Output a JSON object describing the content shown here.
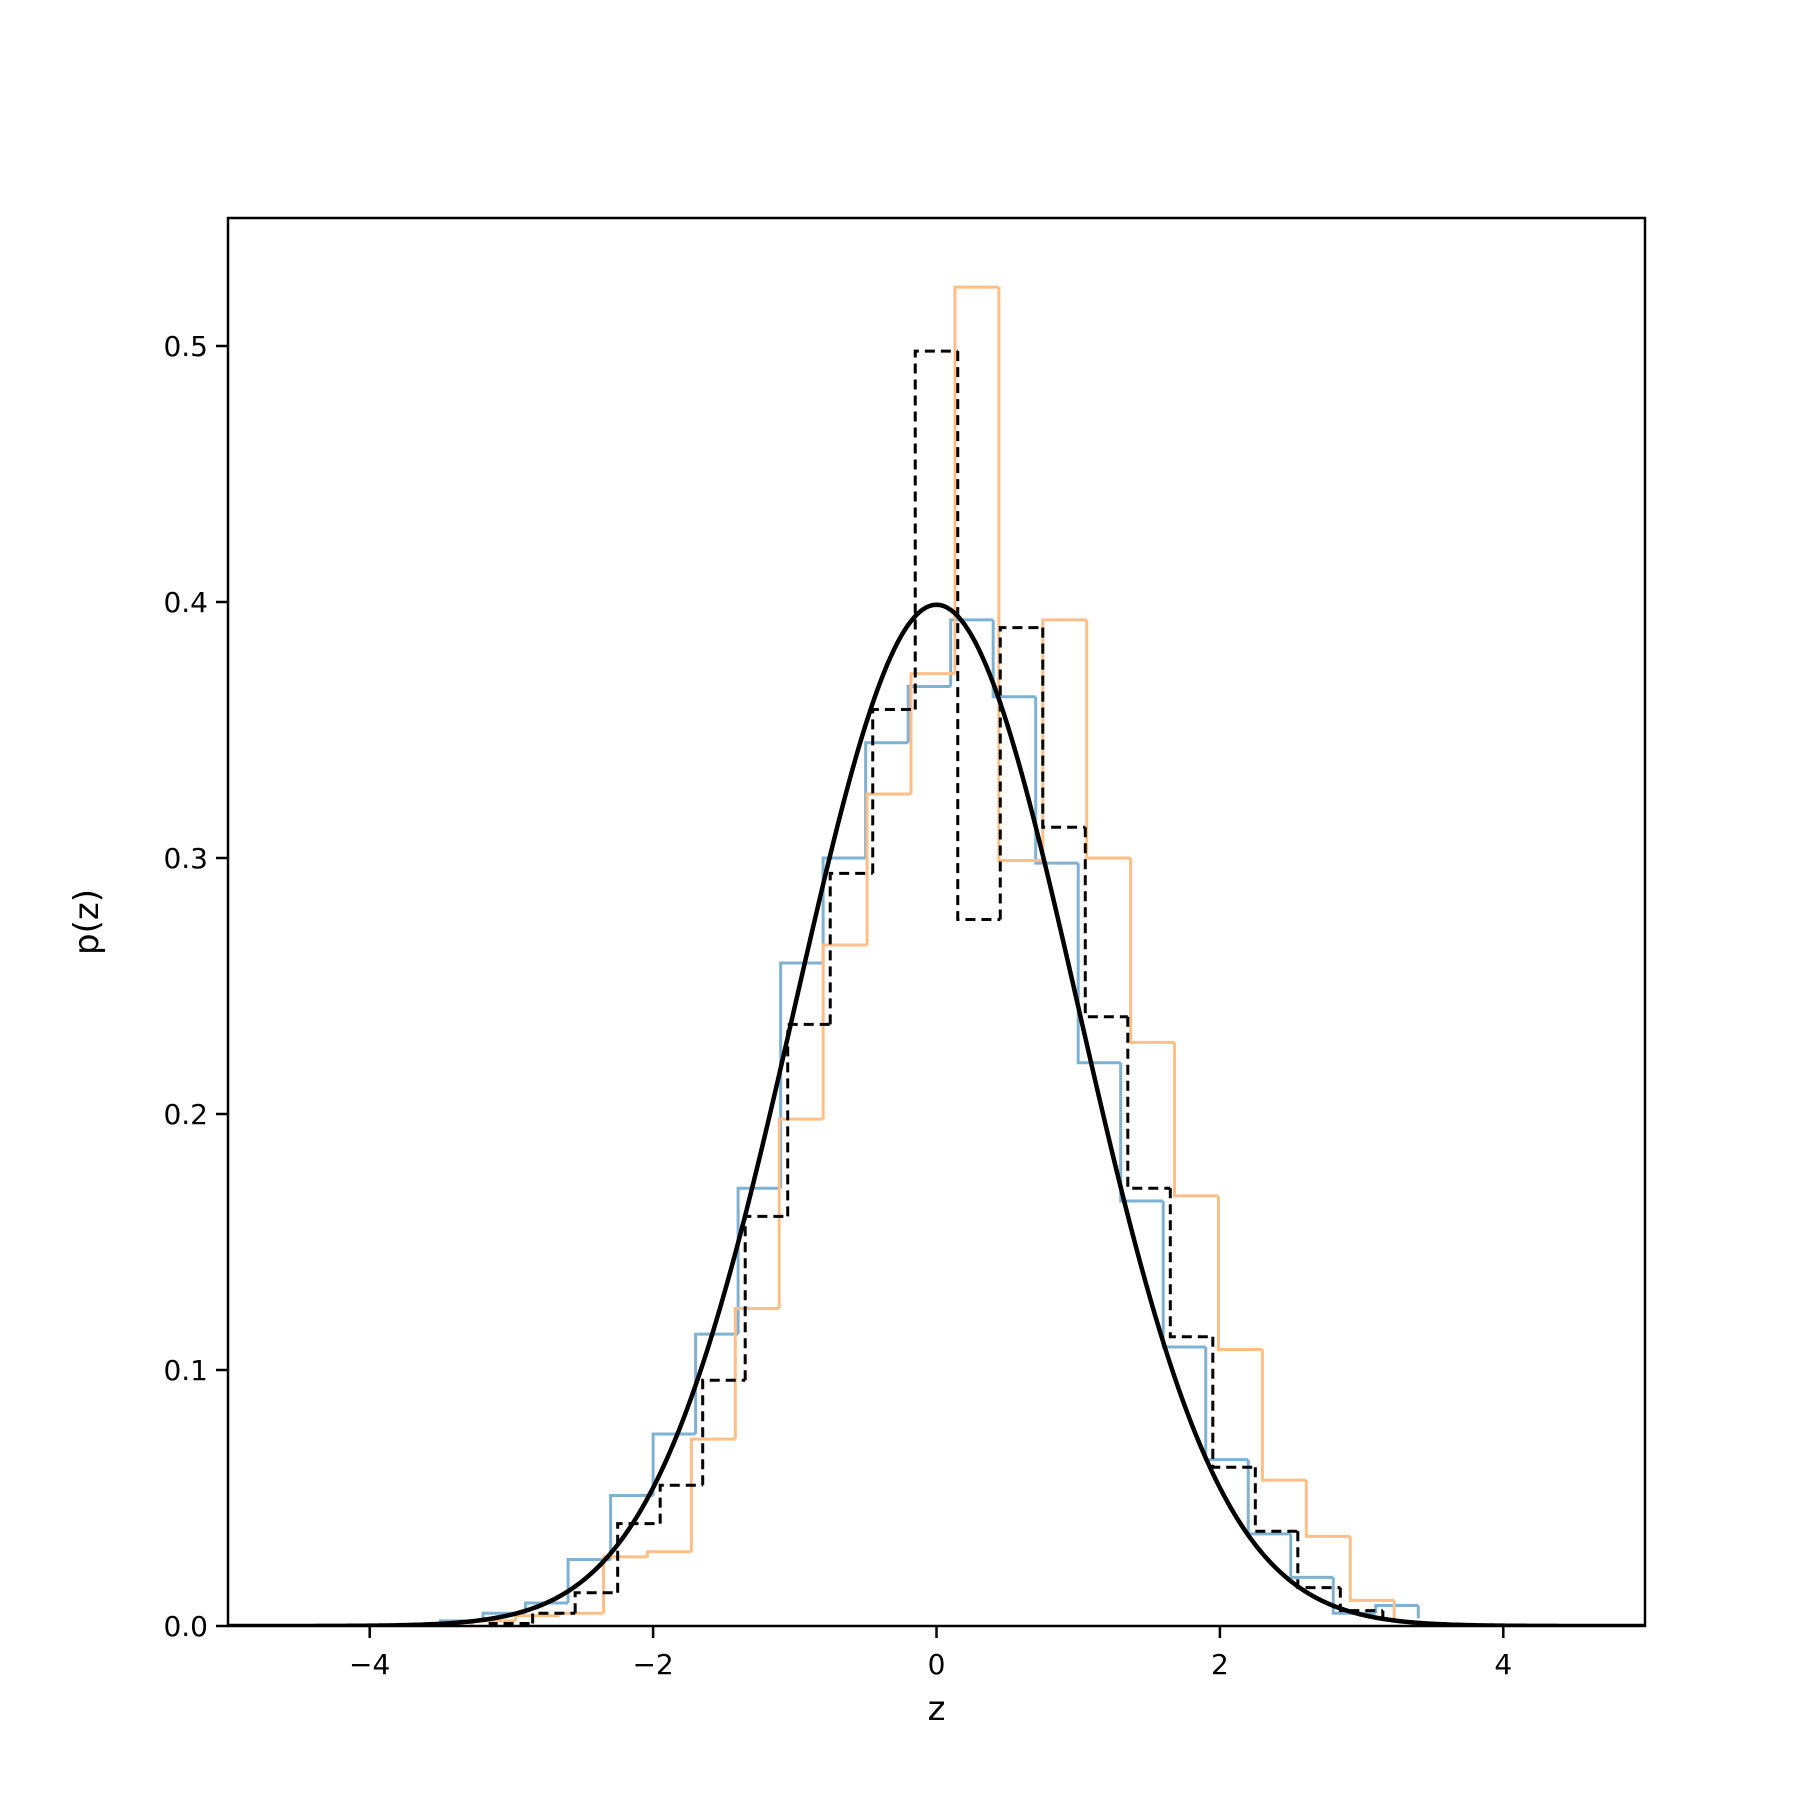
{
  "chart_data": {
    "type": "histogram",
    "xlabel": "z",
    "ylabel": "p(z)",
    "xlim": [
      -5,
      5
    ],
    "ylim": [
      0,
      0.55
    ],
    "x_ticks": [
      -4,
      -2,
      0,
      2,
      4
    ],
    "x_tick_labels": [
      "−4",
      "−2",
      "0",
      "2",
      "4"
    ],
    "y_ticks": [
      0.0,
      0.1,
      0.2,
      0.3,
      0.4,
      0.5
    ],
    "y_tick_labels": [
      "0.0",
      "0.1",
      "0.2",
      "0.3",
      "0.4",
      "0.5"
    ],
    "grid": false,
    "legend": "none",
    "series": [
      {
        "kind": "step",
        "color": "#7fb1d3",
        "linestyle": "solid",
        "bin_edges": [
          -3.5,
          -3.2,
          -2.9,
          -2.6,
          -2.3,
          -2.0,
          -1.7,
          -1.4,
          -1.1,
          -0.8,
          -0.5,
          -0.2,
          0.1,
          0.4,
          0.7,
          1.0,
          1.3,
          1.6,
          1.9,
          2.2,
          2.5,
          2.8,
          3.1,
          3.4
        ],
        "values": [
          0.002,
          0.005,
          0.009,
          0.026,
          0.051,
          0.075,
          0.114,
          0.171,
          0.259,
          0.3,
          0.345,
          0.367,
          0.393,
          0.363,
          0.298,
          0.22,
          0.166,
          0.109,
          0.065,
          0.036,
          0.019,
          0.005,
          0.008,
          0.003
        ]
      },
      {
        "kind": "step",
        "color": "#fdbf87",
        "linestyle": "solid",
        "bin_edges": [
          -3.28,
          -2.97,
          -2.66,
          -2.35,
          -2.04,
          -1.73,
          -1.42,
          -1.11,
          -0.8,
          -0.49,
          -0.18,
          0.13,
          0.44,
          0.75,
          1.06,
          1.37,
          1.68,
          1.99,
          2.3,
          2.61,
          2.92,
          3.23
        ],
        "values": [
          0.002,
          0.004,
          0.005,
          0.027,
          0.029,
          0.073,
          0.124,
          0.198,
          0.266,
          0.325,
          0.372,
          0.523,
          0.299,
          0.393,
          0.3,
          0.228,
          0.168,
          0.108,
          0.057,
          0.035,
          0.01,
          0.002
        ]
      },
      {
        "kind": "step",
        "color": "#000000",
        "linestyle": "dashed",
        "bin_edges": [
          -3.15,
          -2.85,
          -2.55,
          -2.25,
          -1.95,
          -1.65,
          -1.35,
          -1.05,
          -0.75,
          -0.45,
          -0.15,
          0.15,
          0.45,
          0.75,
          1.05,
          1.35,
          1.65,
          1.95,
          2.25,
          2.55,
          2.85,
          3.15
        ],
        "values": [
          0.001,
          0.005,
          0.013,
          0.04,
          0.055,
          0.096,
          0.16,
          0.235,
          0.294,
          0.358,
          0.498,
          0.276,
          0.39,
          0.312,
          0.238,
          0.171,
          0.113,
          0.062,
          0.037,
          0.015,
          0.006,
          0.002
        ]
      },
      {
        "kind": "curve",
        "color": "#000000",
        "linestyle": "solid",
        "function": "standard normal pdf",
        "mean": 0,
        "std": 1
      }
    ]
  }
}
